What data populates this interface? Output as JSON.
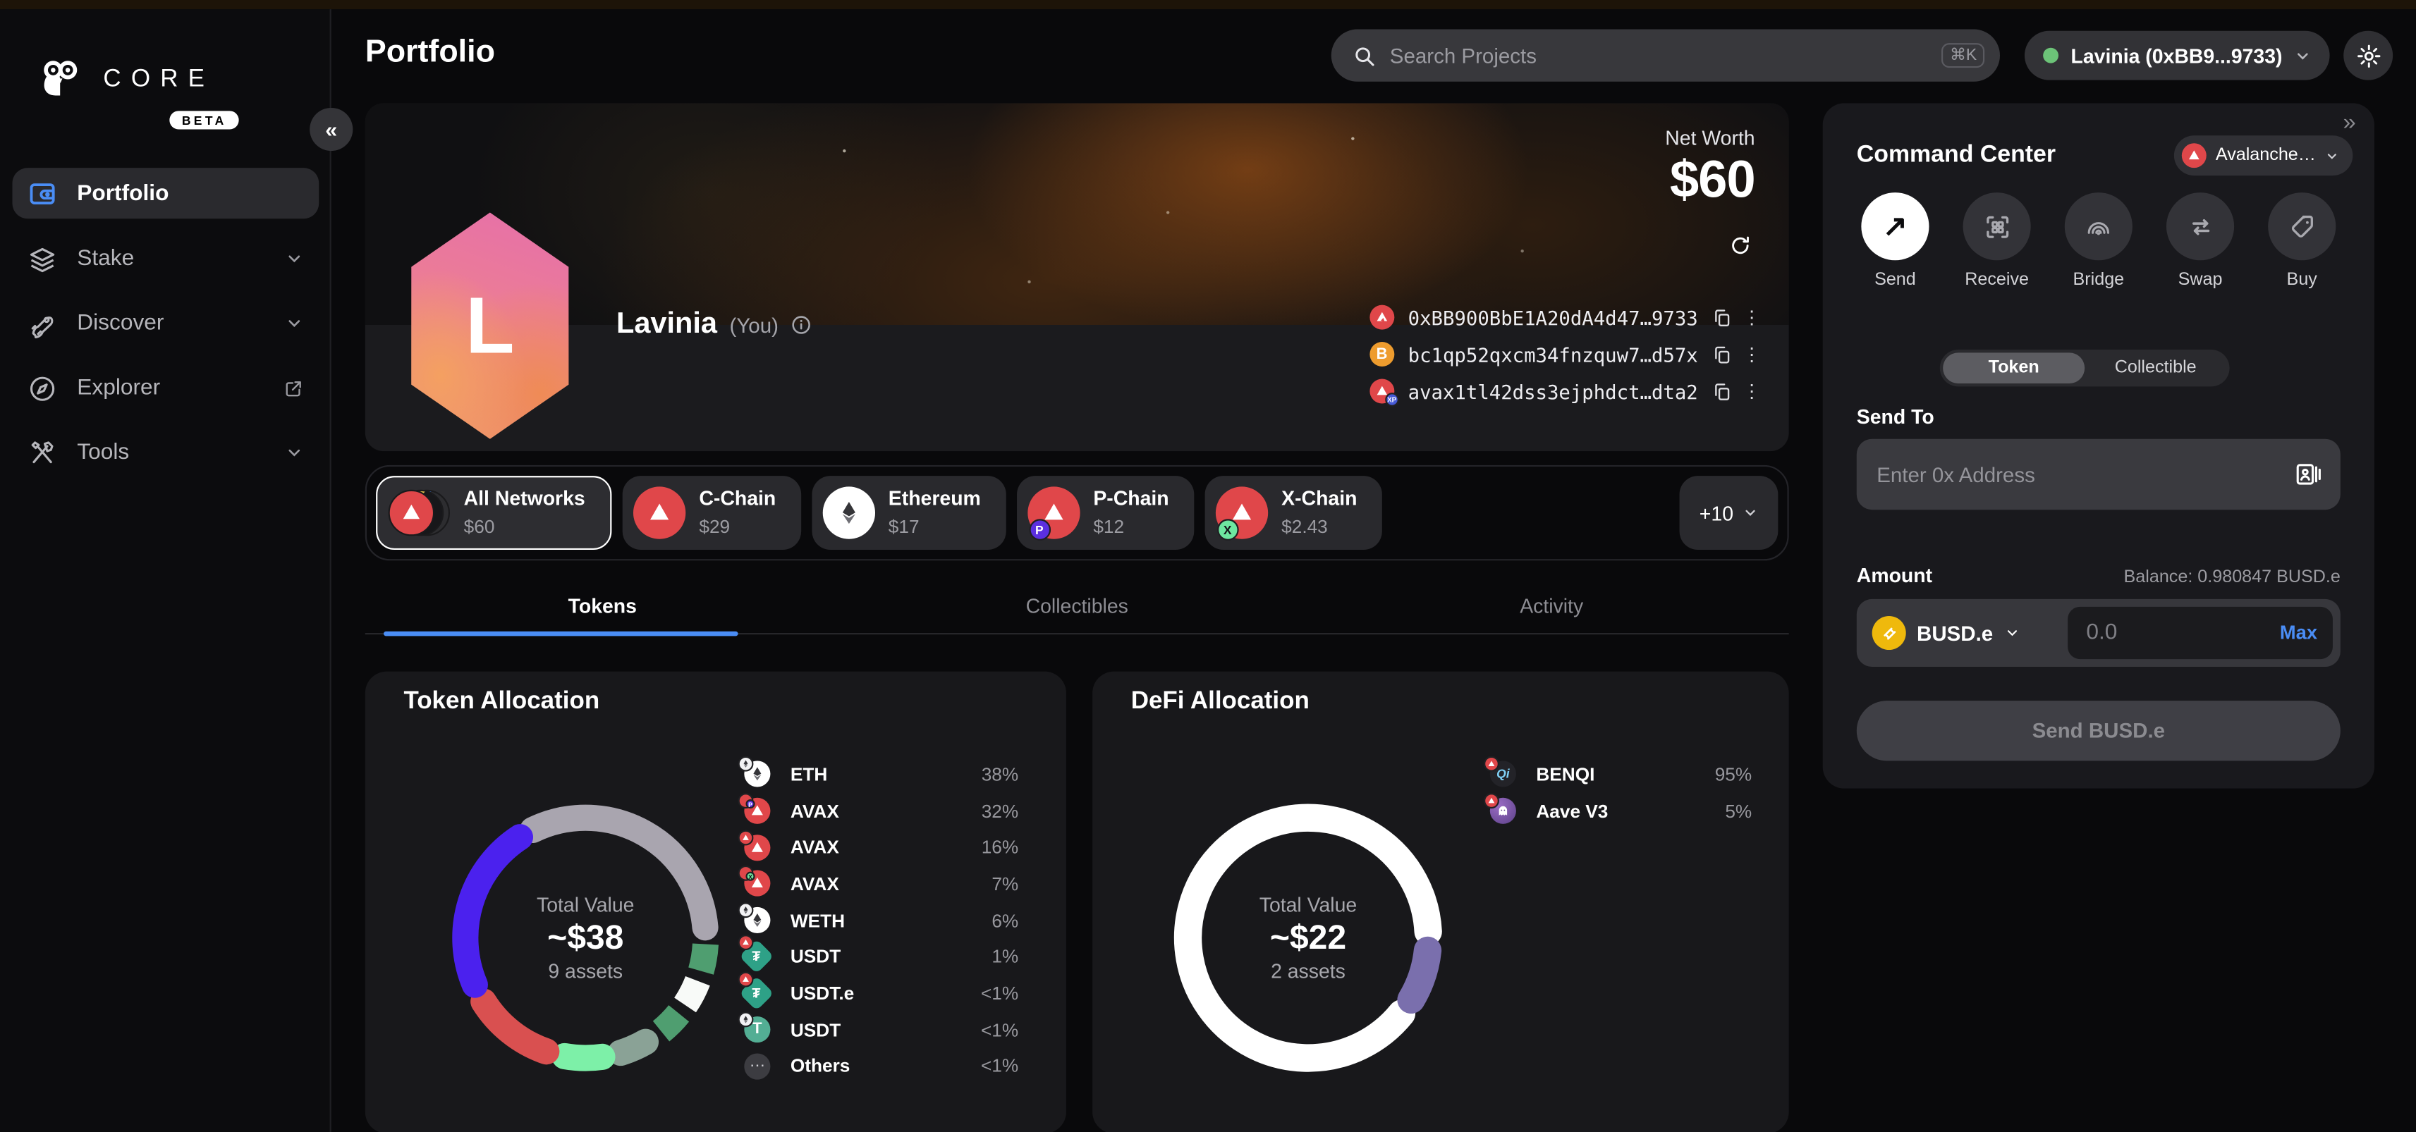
{
  "colors": {
    "accent_blue": "#4a8df5",
    "avax_red": "#e0474a",
    "btc_orange": "#ee9c2e",
    "tether_teal": "#2ea187",
    "tether_green": "#53ae94",
    "busd_gold": "#efb90c",
    "green_dot": "#6cc378",
    "indigo": "#4b21ee",
    "aave_purple": "#7a6fad"
  },
  "sidebar": {
    "brand": "CORE",
    "beta": "BETA",
    "collapse_glyph": "«",
    "items": [
      {
        "label": "Portfolio"
      },
      {
        "label": "Stake"
      },
      {
        "label": "Discover"
      },
      {
        "label": "Explorer"
      },
      {
        "label": "Tools"
      }
    ]
  },
  "header": {
    "title": "Portfolio",
    "search_placeholder": "Search Projects",
    "search_shortcut": "⌘K",
    "account_label": "Lavinia (0xBB9...9733)"
  },
  "hero": {
    "net_worth_label": "Net Worth",
    "net_worth_value": "$60",
    "avatar_letter": "L",
    "name": "Lavinia",
    "you": "(You)",
    "addresses": [
      {
        "text": "0xBB900BbE1A20dA4d47…9733"
      },
      {
        "text": "bc1qp52qxcm34fnzquw7…d57x"
      },
      {
        "text": "avax1tl42dss3ejphdct…dta2"
      }
    ]
  },
  "networks": {
    "chips": [
      {
        "name": "All Networks",
        "value": "$60"
      },
      {
        "name": "C-Chain",
        "value": "$29"
      },
      {
        "name": "Ethereum",
        "value": "$17"
      },
      {
        "name": "P-Chain",
        "value": "$12"
      },
      {
        "name": "X-Chain",
        "value": "$2.43"
      }
    ],
    "more_label": "+10"
  },
  "tabs": [
    {
      "label": "Tokens"
    },
    {
      "label": "Collectibles"
    },
    {
      "label": "Activity"
    }
  ],
  "chart_data": [
    {
      "type": "donut",
      "title": "Token Allocation",
      "center": {
        "label": "Total Value",
        "value": "~$38",
        "sub": "9 assets"
      },
      "legend": [
        {
          "label": "ETH",
          "pct": "38%"
        },
        {
          "label": "AVAX",
          "pct": "32%"
        },
        {
          "label": "AVAX",
          "pct": "16%"
        },
        {
          "label": "AVAX",
          "pct": "7%"
        },
        {
          "label": "WETH",
          "pct": "6%"
        },
        {
          "label": "USDT",
          "pct": "1%"
        },
        {
          "label": "USDT.e",
          "pct": "<1%"
        },
        {
          "label": "USDT",
          "pct": "<1%"
        },
        {
          "label": "Others",
          "pct": "<1%"
        }
      ],
      "segments": [
        {
          "name": "ETH",
          "start": -26,
          "end": 85,
          "color": "#a9a5af",
          "cap": "round"
        },
        {
          "name": "USDT",
          "start": 93,
          "end": 106,
          "color": "#4f9e70",
          "cap": "butt"
        },
        {
          "name": "USDT.e",
          "start": 111,
          "end": 124,
          "color": "#f8faf8",
          "cap": "butt"
        },
        {
          "name": "USDT",
          "start": 129,
          "end": 141,
          "color": "#4f9e70",
          "cap": "butt"
        },
        {
          "name": "WETH",
          "start": 150,
          "end": 163,
          "color": "#8aa296",
          "cap": "round"
        },
        {
          "name": "AVAX-7",
          "start": 172,
          "end": 190,
          "color": "#7df0a8",
          "cap": "round"
        },
        {
          "name": "AVAX-16",
          "start": 199,
          "end": 238,
          "color": "#d95050",
          "cap": "round"
        },
        {
          "name": "AVAX-32",
          "start": 247,
          "end": 327,
          "color": "#4b21ee",
          "cap": "round"
        }
      ]
    },
    {
      "type": "donut",
      "title": "DeFi Allocation",
      "center": {
        "label": "Total Value",
        "value": "~$22",
        "sub": "2 assets"
      },
      "legend": [
        {
          "label": "BENQI",
          "pct": "95%"
        },
        {
          "label": "Aave V3",
          "pct": "5%"
        }
      ],
      "segments": [
        {
          "name": "BENQI",
          "start": 129,
          "end": 447,
          "color": "#ffffff",
          "cap": "round"
        },
        {
          "name": "Aave V3",
          "start": 96,
          "end": 121,
          "color": "#7a6fad",
          "cap": "round"
        }
      ]
    }
  ],
  "command_center": {
    "title": "Command Center",
    "collapse_glyph": "»",
    "network_selector": "Avalanche…",
    "actions": [
      {
        "label": "Send"
      },
      {
        "label": "Receive"
      },
      {
        "label": "Bridge"
      },
      {
        "label": "Swap"
      },
      {
        "label": "Buy"
      }
    ],
    "toggle": {
      "token": "Token",
      "collectible": "Collectible"
    },
    "send_to_label": "Send To",
    "address_placeholder": "Enter 0x Address",
    "amount_label": "Amount",
    "balance": "Balance: 0.980847 BUSD.e",
    "token_name": "BUSD.e",
    "amount_placeholder": "0.0",
    "max_label": "Max",
    "send_button": "Send BUSD.e"
  },
  "icons": {
    "others_glyph": "⋯",
    "benqi_glyph": "Qi",
    "kebab_glyph": "⋮"
  }
}
